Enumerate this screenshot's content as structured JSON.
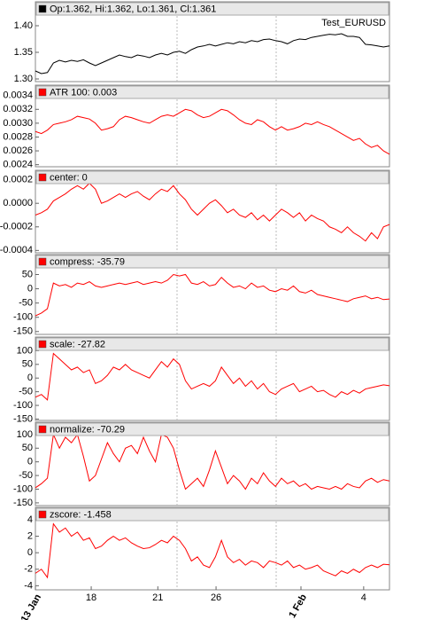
{
  "chart_data": [
    {
      "type": "line",
      "annotation": "Test_EURUSD",
      "series": [
        {
          "name": "Op:1.362, Hi:1.362, Lo:1.361, Cl:1.361",
          "color": "#000000",
          "values": [
            1.315,
            1.31,
            1.312,
            1.33,
            1.335,
            1.332,
            1.335,
            1.333,
            1.336,
            1.33,
            1.325,
            1.33,
            1.335,
            1.34,
            1.345,
            1.342,
            1.34,
            1.345,
            1.343,
            1.34,
            1.345,
            1.348,
            1.345,
            1.35,
            1.352,
            1.348,
            1.355,
            1.36,
            1.362,
            1.365,
            1.362,
            1.365,
            1.368,
            1.366,
            1.37,
            1.368,
            1.372,
            1.37,
            1.374,
            1.375,
            1.372,
            1.37,
            1.366,
            1.372,
            1.375,
            1.374,
            1.378,
            1.38,
            1.382,
            1.384,
            1.383,
            1.385,
            1.38,
            1.38,
            1.378,
            1.365,
            1.364,
            1.362,
            1.36,
            1.362
          ]
        }
      ],
      "ylim": [
        1.295,
        1.445
      ],
      "yticks": [
        {
          "value": 1.3,
          "label": "1.30"
        },
        1.35,
        {
          "value": 1.4,
          "label": "1.40"
        }
      ]
    },
    {
      "type": "line",
      "series": [
        {
          "name": "ATR 100: 0.003",
          "color": "#ff0000",
          "values": [
            0.00288,
            0.00285,
            0.0029,
            0.00298,
            0.003,
            0.00302,
            0.00305,
            0.0031,
            0.00308,
            0.00306,
            0.003,
            0.0029,
            0.00292,
            0.00295,
            0.00305,
            0.0031,
            0.00308,
            0.00305,
            0.00302,
            0.003,
            0.00305,
            0.0031,
            0.00312,
            0.0031,
            0.00315,
            0.0032,
            0.00318,
            0.00312,
            0.00308,
            0.0031,
            0.00315,
            0.0032,
            0.00318,
            0.00312,
            0.00305,
            0.003,
            0.00298,
            0.00305,
            0.00302,
            0.00295,
            0.0029,
            0.00295,
            0.0029,
            0.00292,
            0.00295,
            0.003,
            0.00298,
            0.00302,
            0.00298,
            0.00295,
            0.0029,
            0.00285,
            0.0028,
            0.00275,
            0.00278,
            0.0027,
            0.00265,
            0.00268,
            0.0026,
            0.00255
          ]
        }
      ],
      "ylim": [
        0.00237,
        0.00355
      ],
      "yticks": [
        0.0024,
        0.0026,
        0.0028,
        {
          "value": 0.003,
          "label": "0.0030"
        },
        0.0032,
        0.0034
      ]
    },
    {
      "type": "line",
      "series": [
        {
          "name": "center: 0",
          "color": "#ff0000",
          "values": [
            -0.0001,
            -8e-05,
            -5e-05,
            2e-05,
            5e-05,
            8e-05,
            0.00012,
            0.00015,
            0.00012,
            0.00017,
            0.00012,
            0,
            2e-05,
            5e-05,
            8e-05,
            5e-05,
            8e-05,
            0.0001,
            6e-05,
            3e-05,
            8e-05,
            0.00012,
            0.0001,
            0.00015,
            8e-05,
            3e-05,
            -5e-05,
            -0.0001,
            -5e-05,
            0,
            3e-05,
            -2e-05,
            -8e-05,
            -5e-05,
            -0.0001,
            -0.00012,
            -8e-05,
            -0.00014,
            -0.0001,
            -0.00015,
            -0.0001,
            -5e-05,
            -8e-05,
            -0.00012,
            -8e-05,
            -0.00015,
            -0.0001,
            -0.00013,
            -0.00015,
            -0.0002,
            -0.00022,
            -0.00025,
            -0.0002,
            -0.00025,
            -0.00028,
            -0.00032,
            -0.00025,
            -0.0003,
            -0.0002,
            -0.00018
          ]
        }
      ],
      "ylim": [
        -0.00042,
        0.00028
      ],
      "yticks": [
        0.0002,
        {
          "value": 0,
          "label": "0.0000"
        },
        -0.0002,
        -0.0004
      ]
    },
    {
      "type": "line",
      "series": [
        {
          "name": "compress: -35.79",
          "color": "#ff0000",
          "values": [
            -95,
            -85,
            -70,
            20,
            10,
            15,
            5,
            20,
            15,
            25,
            10,
            5,
            10,
            15,
            20,
            15,
            20,
            25,
            15,
            20,
            25,
            20,
            30,
            50,
            45,
            50,
            20,
            15,
            25,
            10,
            15,
            40,
            20,
            5,
            10,
            0,
            20,
            5,
            10,
            -5,
            -10,
            0,
            -5,
            10,
            -10,
            -15,
            -5,
            -20,
            -25,
            -30,
            -35,
            -40,
            -45,
            -35,
            -30,
            -25,
            -35,
            -30,
            -38,
            -36
          ]
        }
      ],
      "ylim": [
        -160,
        120
      ],
      "yticks": [
        50,
        0,
        -50,
        -100,
        -150
      ]
    },
    {
      "type": "line",
      "series": [
        {
          "name": "scale: -27.82",
          "color": "#ff0000",
          "values": [
            -70,
            -60,
            -80,
            90,
            70,
            50,
            30,
            40,
            20,
            30,
            -20,
            -10,
            10,
            40,
            30,
            50,
            30,
            20,
            10,
            0,
            30,
            60,
            40,
            70,
            50,
            -10,
            -40,
            -30,
            -20,
            -30,
            -10,
            40,
            10,
            -20,
            0,
            -30,
            -10,
            -40,
            -20,
            -50,
            -60,
            -40,
            -30,
            -20,
            -50,
            -40,
            -30,
            -50,
            -45,
            -60,
            -70,
            -50,
            -60,
            -45,
            -55,
            -40,
            -35,
            -30,
            -25,
            -28
          ]
        }
      ],
      "ylim": [
        -155,
        150
      ],
      "yticks": [
        100,
        50,
        0,
        -50,
        -100,
        -150
      ]
    },
    {
      "type": "line",
      "series": [
        {
          "name": "normalize: -70.29",
          "color": "#ff0000",
          "values": [
            -95,
            -80,
            -60,
            100,
            50,
            90,
            70,
            100,
            20,
            -70,
            -50,
            10,
            70,
            30,
            0,
            50,
            60,
            30,
            90,
            40,
            0,
            100,
            90,
            50,
            -30,
            -100,
            -80,
            -60,
            -90,
            -30,
            40,
            -20,
            -80,
            -50,
            -70,
            -100,
            -60,
            -80,
            -40,
            -70,
            -90,
            -60,
            -80,
            -70,
            -90,
            -80,
            -100,
            -90,
            -95,
            -100,
            -90,
            -100,
            -80,
            -90,
            -95,
            -70,
            -60,
            -75,
            -65,
            -70
          ]
        }
      ],
      "ylim": [
        -160,
        145
      ],
      "yticks": [
        100,
        50,
        0,
        -50,
        -100,
        -150
      ]
    },
    {
      "type": "line",
      "series": [
        {
          "name": "zscore: -1.458",
          "color": "#ff0000",
          "values": [
            -2.5,
            -2,
            -3,
            3.5,
            2.5,
            3,
            2,
            2.5,
            1.5,
            1.8,
            0.5,
            0.8,
            1.5,
            2,
            1.5,
            1.8,
            1.2,
            0.8,
            0.5,
            0.6,
            1,
            1.5,
            1.2,
            2,
            1.5,
            0.5,
            -1,
            -0.5,
            -1.5,
            -1.8,
            -0.5,
            1.5,
            -0.5,
            -1.2,
            -0.8,
            -1.5,
            -1,
            -1.2,
            -1.8,
            -1,
            -1.2,
            -1.5,
            -1,
            -1.8,
            -1.5,
            -2,
            -1.8,
            -1.5,
            -2.2,
            -2.5,
            -2.8,
            -2.2,
            -2.5,
            -2,
            -2.4,
            -1.8,
            -1.5,
            -1.8,
            -1.4,
            -1.46
          ]
        }
      ],
      "ylim": [
        -4.5,
        5.5
      ],
      "yticks": [
        4,
        2,
        0,
        -2,
        -4
      ],
      "xlim": [
        0,
        59
      ],
      "xticks": [
        {
          "value": 0,
          "label": "13 Jan"
        },
        {
          "value": 9.3,
          "label": "18"
        },
        {
          "value": 20.4,
          "label": "21"
        },
        {
          "value": 30.1,
          "label": "26"
        },
        {
          "value": 44.25,
          "label": "1 Feb"
        },
        {
          "value": 54.7,
          "label": "4"
        }
      ]
    }
  ]
}
